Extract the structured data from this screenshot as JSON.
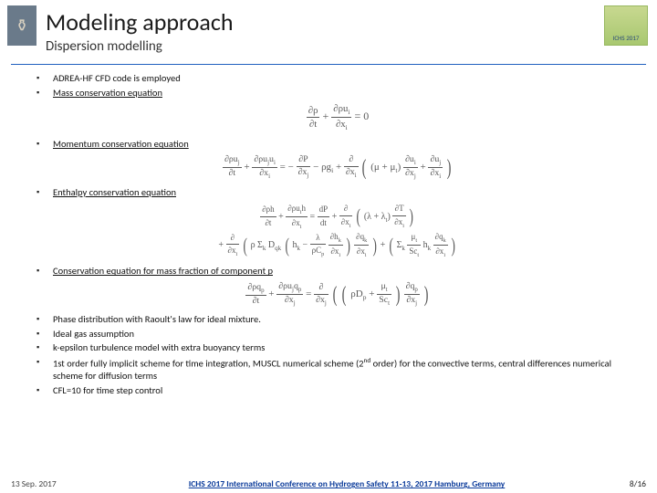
{
  "header": {
    "title": "Modeling approach",
    "subtitle": "Dispersion modelling",
    "logo_right_label": "ICHS 2017"
  },
  "bullets": {
    "b1": "ADREA-HF CFD code is employed",
    "b2": "Mass conservation equation",
    "b3": "Momentum conservation equation",
    "b4": "Enthalpy conservation equation",
    "b5": "Conservation equation for mass fraction of component p",
    "b6": "Phase distribution with Raoult's law for ideal mixture.",
    "b7": "Ideal gas assumption",
    "b8": "k-epsilon turbulence model with extra buoyancy terms",
    "b9a": "1st order fully implicit scheme for time integration, MUSCL numerical scheme (2",
    "b9b": " order) for the convective terms, central differences numerical scheme for diffusion terms",
    "b9sup": "nd",
    "b10": "CFL=10 for time step control"
  },
  "equations": {
    "mass_lhs_num1": "∂ρ",
    "mass_lhs_den1": "∂t",
    "mass_lhs_num2": "∂ρu",
    "mass_lhs_den2": "∂x",
    "mass_sub": "i",
    "mom_txt": "momentum",
    "enth_txt": "enthalpy",
    "massfrac_txt": "massfrac"
  },
  "footer": {
    "date": "13 Sep. 2017",
    "conf": "ICHS 2017 International Conference on Hydrogen Safety 11-13, 2017 Hamburg, Germany",
    "page": "8/16"
  },
  "colors": {
    "rule": "#1f5fbf",
    "eq": "#5a5a5a",
    "conf_link": "#0a3a9a"
  }
}
